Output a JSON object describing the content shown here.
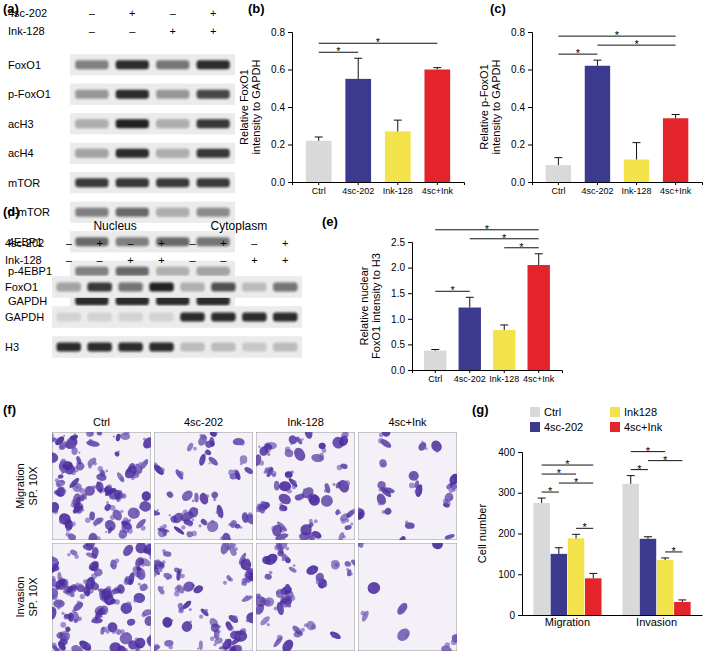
{
  "chart_data": [
    {
      "type": "bar",
      "panel": "(b)",
      "y_label": "Relative FoxO1 intensity to GAPDH",
      "categories": [
        "Ctrl",
        "4sc-202",
        "Ink-128",
        "4sc+Ink"
      ],
      "values": [
        0.22,
        0.55,
        0.27,
        0.6
      ],
      "errors": [
        0.02,
        0.11,
        0.06,
        0.01
      ],
      "colors": [
        "#d9d9d9",
        "#3b3a8e",
        "#f3e34b",
        "#e3242b"
      ],
      "ylim": [
        0,
        0.8
      ],
      "yticks": [
        {
          "value": 0,
          "label": "0.0"
        },
        0.2,
        0.4,
        0.6,
        0.8
      ],
      "significance": [
        {
          "pair": [
            "Ctrl",
            "4sc-202"
          ],
          "label": "*"
        },
        {
          "pair": [
            "Ctrl",
            "4sc+Ink"
          ],
          "label": "*"
        }
      ]
    },
    {
      "type": "bar",
      "panel": "(c)",
      "y_label": "Relative p-FoxO1 intensity to GAPDH",
      "categories": [
        "Ctrl",
        "4sc-202",
        "Ink-128",
        "4sc+Ink"
      ],
      "values": [
        0.09,
        0.62,
        0.12,
        0.34
      ],
      "errors": [
        0.04,
        0.03,
        0.09,
        0.02
      ],
      "colors": [
        "#d9d9d9",
        "#3b3a8e",
        "#f3e34b",
        "#e3242b"
      ],
      "ylim": [
        0,
        0.8
      ],
      "yticks": [
        {
          "value": 0,
          "label": "0.0"
        },
        0.2,
        0.4,
        0.6,
        0.8
      ],
      "significance": [
        {
          "pair": [
            "Ctrl",
            "4sc-202"
          ],
          "label": "*"
        },
        {
          "pair": [
            "4sc-202",
            "4sc+Ink"
          ],
          "label": "*"
        },
        {
          "pair": [
            "Ctrl",
            "4sc+Ink"
          ],
          "label": "*"
        }
      ]
    },
    {
      "type": "bar",
      "panel": "(e)",
      "y_label": "Relative nuclear FoxO1 intensity to H3",
      "categories": [
        "Ctrl",
        "4sc-202",
        "Ink-128",
        "4sc+Ink"
      ],
      "values": [
        0.38,
        1.22,
        0.78,
        2.05
      ],
      "errors": [
        0.02,
        0.2,
        0.1,
        0.22
      ],
      "colors": [
        "#d9d9d9",
        "#3b3a8e",
        "#f3e34b",
        "#e3242b"
      ],
      "ylim": [
        0,
        2.5
      ],
      "yticks": [
        {
          "value": 0,
          "label": "0.0"
        },
        0.5,
        {
          "value": 1,
          "label": "1.0"
        },
        1.5,
        {
          "value": 2,
          "label": "2.0"
        },
        2.5
      ],
      "significance": [
        {
          "pair": [
            "Ctrl",
            "4sc-202"
          ],
          "label": "*"
        },
        {
          "pair": [
            "Ink-128",
            "4sc+Ink"
          ],
          "label": "*"
        },
        {
          "pair": [
            "4sc-202",
            "4sc+Ink"
          ],
          "label": "*"
        },
        {
          "pair": [
            "Ctrl",
            "4sc+Ink"
          ],
          "label": "*"
        }
      ]
    },
    {
      "type": "bar",
      "panel": "(g)",
      "y_label": "Cell number",
      "legend": "top",
      "categories": [
        "Migration",
        "Invasion"
      ],
      "series": [
        {
          "name": "Ctrl",
          "color": "#d9d9d9",
          "values": [
            275,
            322
          ],
          "errors": [
            12,
            20
          ]
        },
        {
          "name": "4sc-202",
          "color": "#3b3a8e",
          "values": [
            150,
            187
          ],
          "errors": [
            15,
            5
          ]
        },
        {
          "name": "Ink128",
          "color": "#f3e34b",
          "values": [
            188,
            135
          ],
          "errors": [
            10,
            5
          ]
        },
        {
          "name": "4sc+Ink",
          "color": "#e3242b",
          "values": [
            90,
            32
          ],
          "errors": [
            12,
            5
          ]
        }
      ],
      "ylim": [
        0,
        400
      ],
      "yticks": [
        0,
        100,
        200,
        300,
        400
      ],
      "significance": [
        {
          "category": "Migration",
          "pair": [
            "Ctrl",
            "4sc-202"
          ],
          "label": "*"
        },
        {
          "category": "Migration",
          "pair": [
            "Ink128",
            "4sc+Ink"
          ],
          "label": "*"
        },
        {
          "category": "Migration",
          "pair": [
            "4sc-202",
            "4sc+Ink"
          ],
          "label": "*"
        },
        {
          "category": "Migration",
          "pair": [
            "Ctrl",
            "Ink128"
          ],
          "label": "*"
        },
        {
          "category": "Migration",
          "pair": [
            "Ctrl",
            "4sc+Ink"
          ],
          "label": "*"
        },
        {
          "category": "Invasion",
          "pair": [
            "Ctrl",
            "4sc-202"
          ],
          "label": "*"
        },
        {
          "category": "Invasion",
          "pair": [
            "Ink128",
            "4sc+Ink"
          ],
          "label": "*"
        },
        {
          "category": "Invasion",
          "pair": [
            "4sc-202",
            "4sc+Ink"
          ],
          "label": "*"
        },
        {
          "category": "Invasion",
          "pair": [
            "Ctrl",
            "Ink128"
          ],
          "label": "*"
        }
      ]
    }
  ],
  "blots": [
    {
      "panel": "(a)",
      "conditions": [
        {
          "label": "4sc-202",
          "signs": [
            "–",
            "+",
            "–",
            "+"
          ]
        },
        {
          "label": "Ink-128",
          "signs": [
            "–",
            "–",
            "+",
            "+"
          ]
        }
      ],
      "rows": [
        {
          "label": "FoxO1",
          "bands": [
            0.5,
            0.9,
            0.55,
            0.9
          ]
        },
        {
          "label": "p-FoxO1",
          "bands": [
            0.4,
            0.9,
            0.4,
            0.75
          ]
        },
        {
          "label": "acH3",
          "bands": [
            0.3,
            0.95,
            0.3,
            0.85
          ]
        },
        {
          "label": "acH4",
          "bands": [
            0.35,
            0.9,
            0.3,
            0.85
          ]
        },
        {
          "label": "mTOR",
          "bands": [
            0.8,
            0.85,
            0.8,
            0.8
          ]
        },
        {
          "label": "p-mTOR",
          "bands": [
            0.5,
            0.6,
            0.3,
            0.45
          ]
        },
        {
          "label": "4EBP1",
          "bands": [
            0.6,
            0.5,
            0.6,
            0.55
          ]
        },
        {
          "label": "p-4EBP1",
          "bands": [
            0.5,
            0.6,
            0.25,
            0.35
          ]
        },
        {
          "label": "GAPDH",
          "bands": [
            0.9,
            0.9,
            0.9,
            0.9
          ]
        }
      ]
    },
    {
      "panel": "(d)",
      "groups": [
        "Nucleus",
        "Cytoplasm"
      ],
      "conditions": [
        {
          "label": "4sc-202",
          "signs": [
            "–",
            "+",
            "–",
            "+",
            "–",
            "+",
            "–",
            "+"
          ]
        },
        {
          "label": "Ink-128",
          "signs": [
            "–",
            "–",
            "+",
            "+",
            "–",
            "–",
            "+",
            "+"
          ]
        }
      ],
      "rows": [
        {
          "label": "FoxO1",
          "bands": [
            0.35,
            0.85,
            0.55,
            0.95,
            0.25,
            0.7,
            0.2,
            0.55
          ]
        },
        {
          "label": "GAPDH",
          "bands": [
            0.1,
            0.1,
            0.1,
            0.1,
            0.9,
            0.9,
            0.9,
            0.9
          ]
        },
        {
          "label": "H3",
          "bands": [
            0.9,
            0.9,
            0.9,
            0.9,
            0.2,
            0.2,
            0.15,
            0.2
          ]
        }
      ]
    }
  ],
  "images": {
    "panel": "(f)",
    "columns": [
      "Ctrl",
      "4sc-202",
      "Ink-128",
      "4sc+Ink"
    ],
    "rows": [
      {
        "label": "Migration",
        "magnification": "SP. 10X"
      },
      {
        "label": "Invasion",
        "magnification": "SP. 10X"
      }
    ]
  }
}
